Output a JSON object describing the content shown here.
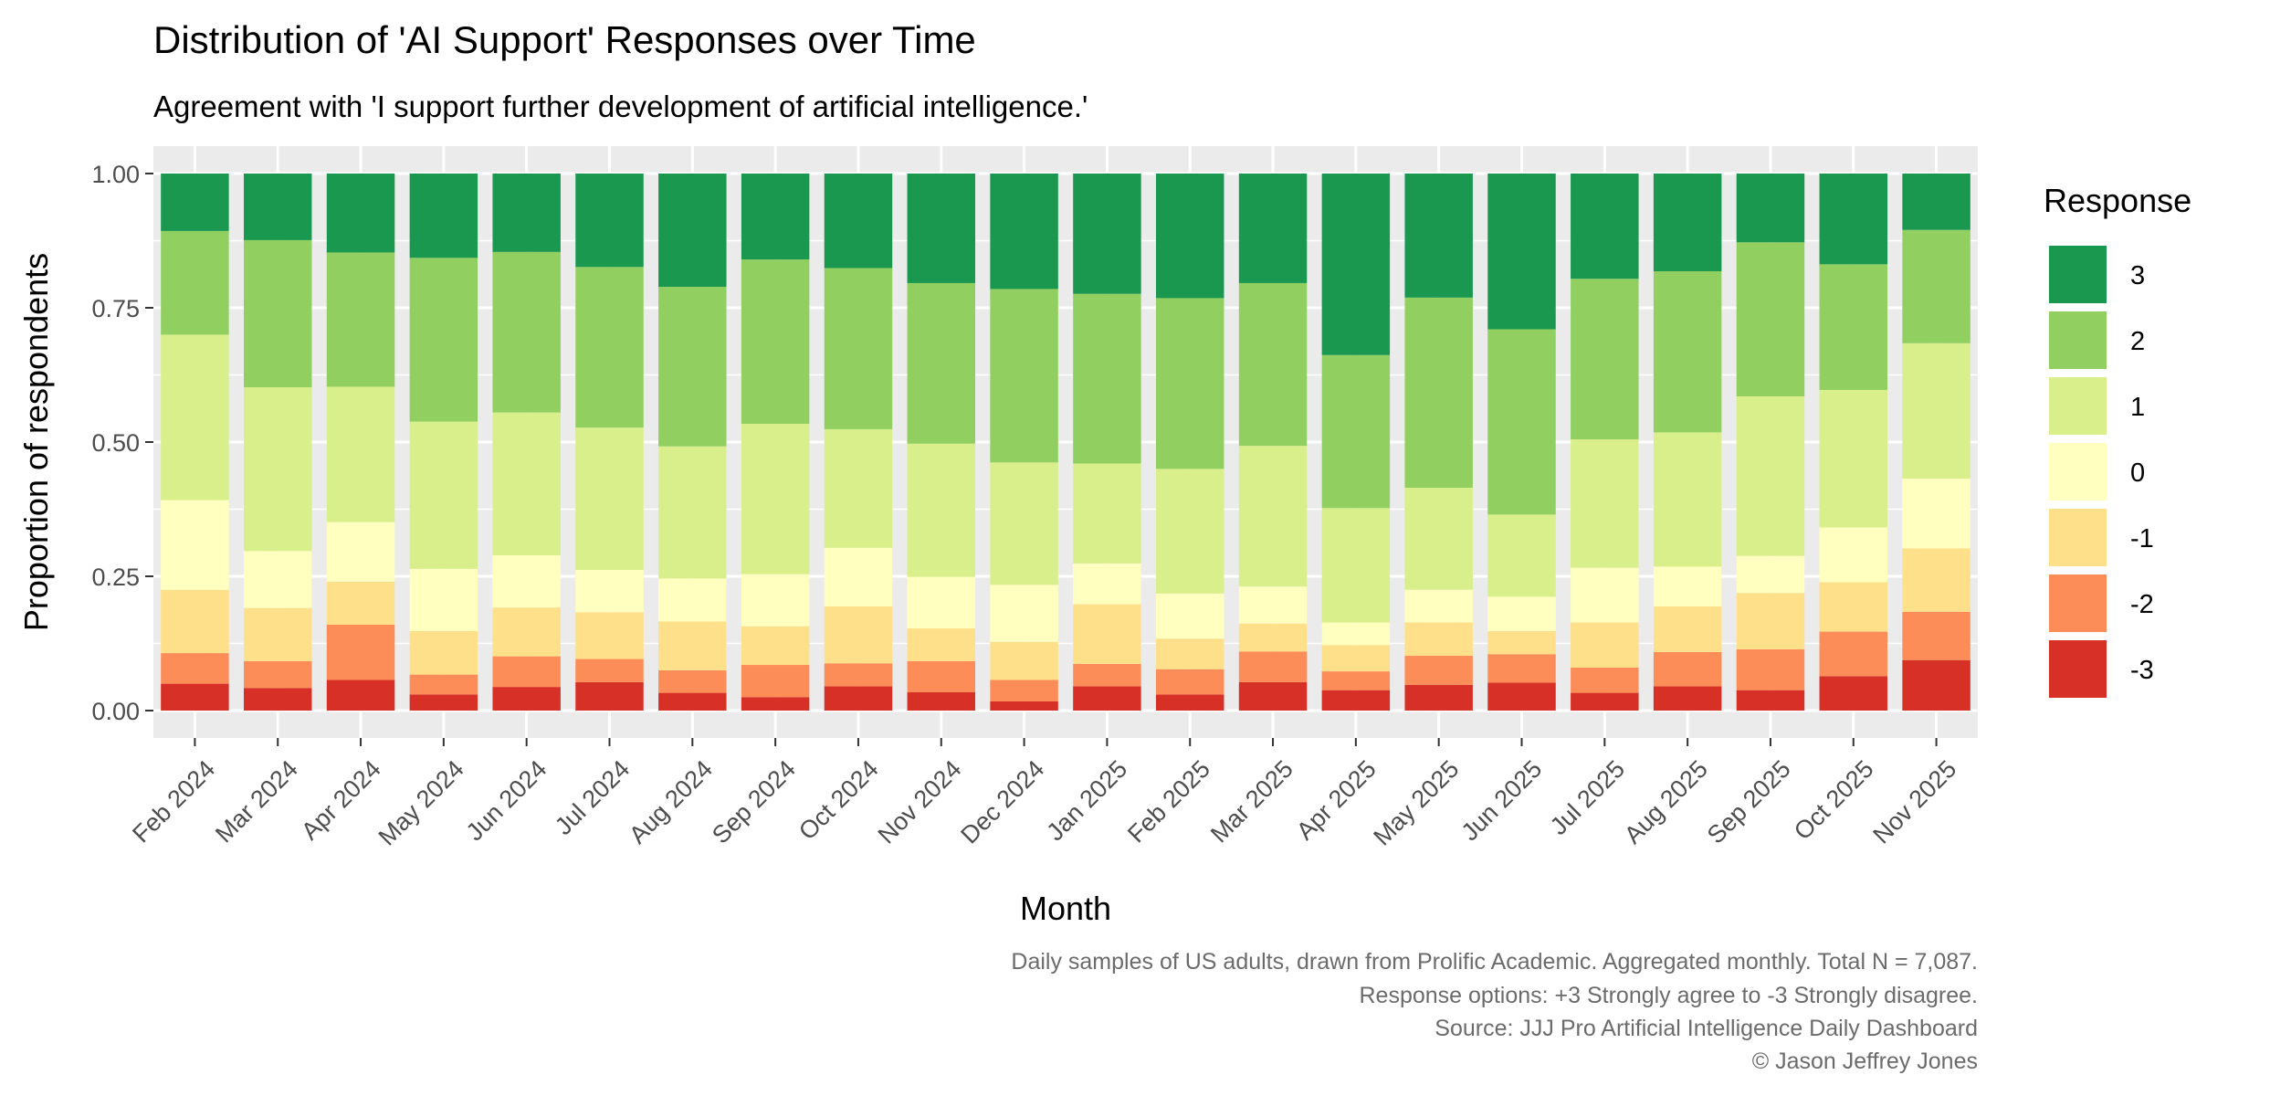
{
  "chart_data": {
    "type": "bar",
    "stacked": true,
    "normalized": true,
    "title": "Distribution of 'AI Support' Responses over Time",
    "subtitle": "Agreement with 'I support further development of artificial intelligence.'",
    "xlabel": "Month",
    "ylabel": "Proportion of respondents",
    "ylim": [
      0,
      1
    ],
    "yticks": [
      "0.00",
      "0.25",
      "0.50",
      "0.75",
      "1.00"
    ],
    "ytick_values": [
      0,
      0.25,
      0.5,
      0.75,
      1.0
    ],
    "categories": [
      "Feb 2024",
      "Mar 2024",
      "Apr 2024",
      "May 2024",
      "Jun 2024",
      "Jul 2024",
      "Aug 2024",
      "Sep 2024",
      "Oct 2024",
      "Nov 2024",
      "Dec 2024",
      "Jan 2025",
      "Feb 2025",
      "Mar 2025",
      "Apr 2025",
      "May 2025",
      "Jun 2025",
      "Jul 2025",
      "Aug 2025",
      "Sep 2025",
      "Oct 2025",
      "Nov 2025"
    ],
    "legend_title": "Response",
    "legend_position": "right",
    "series": [
      {
        "name": "-3",
        "color": "#d73027",
        "values": [
          0.05,
          0.042,
          0.057,
          0.03,
          0.044,
          0.053,
          0.033,
          0.025,
          0.045,
          0.034,
          0.017,
          0.045,
          0.03,
          0.053,
          0.038,
          0.048,
          0.052,
          0.033,
          0.045,
          0.038,
          0.064,
          0.094
        ]
      },
      {
        "name": "-2",
        "color": "#fc8d59",
        "values": [
          0.057,
          0.05,
          0.103,
          0.037,
          0.057,
          0.043,
          0.042,
          0.06,
          0.043,
          0.058,
          0.04,
          0.042,
          0.047,
          0.057,
          0.035,
          0.054,
          0.053,
          0.047,
          0.064,
          0.076,
          0.083,
          0.09
        ]
      },
      {
        "name": "-1",
        "color": "#fee08b",
        "values": [
          0.118,
          0.099,
          0.08,
          0.081,
          0.091,
          0.087,
          0.091,
          0.072,
          0.106,
          0.061,
          0.071,
          0.111,
          0.057,
          0.052,
          0.049,
          0.062,
          0.043,
          0.084,
          0.085,
          0.105,
          0.092,
          0.118
        ]
      },
      {
        "name": "0",
        "color": "#ffffbf",
        "values": [
          0.167,
          0.106,
          0.111,
          0.116,
          0.097,
          0.079,
          0.08,
          0.097,
          0.109,
          0.096,
          0.106,
          0.076,
          0.084,
          0.069,
          0.042,
          0.061,
          0.064,
          0.102,
          0.074,
          0.069,
          0.102,
          0.13
        ]
      },
      {
        "name": "1",
        "color": "#d9ef8b",
        "values": [
          0.308,
          0.305,
          0.252,
          0.274,
          0.266,
          0.265,
          0.246,
          0.28,
          0.221,
          0.248,
          0.228,
          0.186,
          0.232,
          0.262,
          0.213,
          0.19,
          0.153,
          0.239,
          0.25,
          0.297,
          0.256,
          0.252
        ]
      },
      {
        "name": "2",
        "color": "#91cf60",
        "values": [
          0.193,
          0.274,
          0.25,
          0.305,
          0.299,
          0.299,
          0.297,
          0.306,
          0.3,
          0.299,
          0.323,
          0.316,
          0.318,
          0.303,
          0.285,
          0.354,
          0.345,
          0.299,
          0.3,
          0.287,
          0.234,
          0.211
        ]
      },
      {
        "name": "3",
        "color": "#1a9850",
        "values": [
          0.107,
          0.124,
          0.147,
          0.157,
          0.146,
          0.174,
          0.211,
          0.16,
          0.176,
          0.204,
          0.215,
          0.224,
          0.232,
          0.204,
          0.338,
          0.231,
          0.29,
          0.196,
          0.182,
          0.128,
          0.169,
          0.105
        ]
      }
    ],
    "legend_order": [
      "3",
      "2",
      "1",
      "0",
      "-1",
      "-2",
      "-3"
    ],
    "caption": [
      "Daily samples of US adults, drawn from Prolific Academic. Aggregated monthly. Total N = 7,087.",
      "Response options: +3 Strongly agree to -3 Strongly disagree.",
      "Source: JJJ Pro Artificial Intelligence Daily Dashboard",
      "© Jason Jeffrey Jones"
    ]
  }
}
